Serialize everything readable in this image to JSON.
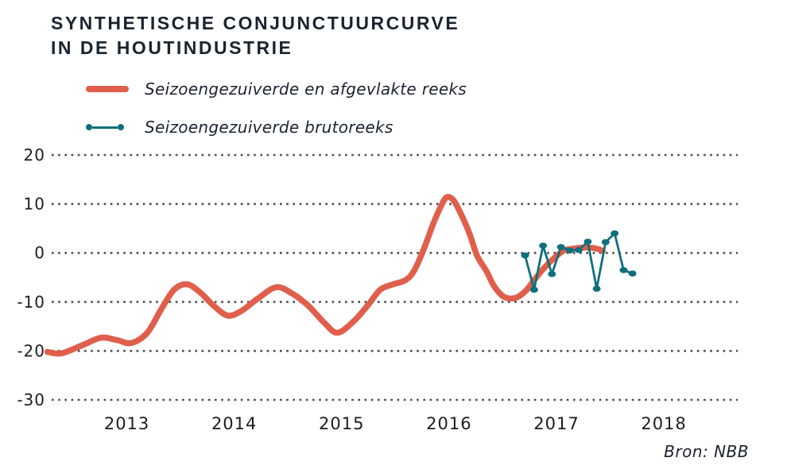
{
  "header": {
    "title_line1": "SYNTHETISCHE CONJUNCTUURCURVE",
    "title_line2": "IN DE HOUTINDUSTRIE"
  },
  "legend": {
    "items": [
      {
        "id": "smoothed",
        "label": "Seizoengezuiverde en afgevlakte reeks"
      },
      {
        "id": "gross",
        "label": "Seizoengezuiverde brutoreeks"
      }
    ]
  },
  "footer": {
    "source": "Bron: NBB"
  },
  "colors": {
    "smoothed": "#df5f4b",
    "gross": "#0f6f7c",
    "grid": "#4b4b4b",
    "text": "#1d1d1b",
    "title": "#1a2330"
  },
  "chart_data": {
    "type": "line",
    "title": "Synthetische conjunctuurcurve in de houtindustrie",
    "xlabel": "",
    "ylabel": "",
    "y_ticks": [
      20,
      10,
      0,
      -10,
      -20,
      -30
    ],
    "ylim": [
      -30,
      20
    ],
    "x_ticks": [
      "2013",
      "2014",
      "2015",
      "2016",
      "2017",
      "2018"
    ],
    "xlim": [
      2012.3,
      2018.7
    ],
    "grid": "dotted-horizontal",
    "legend_position": "top-left",
    "series": [
      {
        "name": "Seizoengezuiverde en afgevlakte reeks",
        "style": "thick-smooth-line",
        "color_key": "smoothed",
        "points": [
          [
            2012.26,
            -20.2
          ],
          [
            2012.39,
            -20.5
          ],
          [
            2012.59,
            -18.8
          ],
          [
            2012.76,
            -17.3
          ],
          [
            2012.91,
            -17.8
          ],
          [
            2013.04,
            -18.4
          ],
          [
            2013.19,
            -16.3
          ],
          [
            2013.32,
            -11.5
          ],
          [
            2013.44,
            -7.5
          ],
          [
            2013.56,
            -6.4
          ],
          [
            2013.68,
            -8.0
          ],
          [
            2013.81,
            -10.8
          ],
          [
            2013.94,
            -12.8
          ],
          [
            2014.07,
            -11.8
          ],
          [
            2014.22,
            -9.3
          ],
          [
            2014.39,
            -7.0
          ],
          [
            2014.54,
            -8.3
          ],
          [
            2014.69,
            -10.8
          ],
          [
            2014.84,
            -14.3
          ],
          [
            2014.96,
            -16.3
          ],
          [
            2015.11,
            -14.0
          ],
          [
            2015.24,
            -10.8
          ],
          [
            2015.36,
            -7.5
          ],
          [
            2015.48,
            -6.4
          ],
          [
            2015.59,
            -5.6
          ],
          [
            2015.67,
            -3.8
          ],
          [
            2015.76,
            0.5
          ],
          [
            2015.85,
            5.8
          ],
          [
            2015.93,
            9.8
          ],
          [
            2015.98,
            11.4
          ],
          [
            2016.04,
            10.8
          ],
          [
            2016.11,
            8.0
          ],
          [
            2016.19,
            4.0
          ],
          [
            2016.26,
            -0.5
          ],
          [
            2016.35,
            -3.8
          ],
          [
            2016.42,
            -6.8
          ],
          [
            2016.5,
            -8.8
          ],
          [
            2016.57,
            -9.3
          ],
          [
            2016.64,
            -9.0
          ],
          [
            2016.72,
            -7.6
          ],
          [
            2016.79,
            -5.6
          ],
          [
            2016.88,
            -3.2
          ],
          [
            2016.98,
            -1.0
          ],
          [
            2017.07,
            0.5
          ],
          [
            2017.16,
            0.9
          ],
          [
            2017.27,
            1.1
          ],
          [
            2017.37,
            0.9
          ],
          [
            2017.43,
            0.4
          ]
        ]
      },
      {
        "name": "Seizoengezuiverde brutoreeks",
        "style": "thin-line-dot-markers",
        "color_key": "gross",
        "points": [
          [
            2016.708,
            -0.5
          ],
          [
            2016.792,
            -7.5
          ],
          [
            2016.875,
            1.5
          ],
          [
            2016.958,
            -4.3
          ],
          [
            2017.042,
            1.2
          ],
          [
            2017.125,
            0.5
          ],
          [
            2017.208,
            0.6
          ],
          [
            2017.292,
            2.3
          ],
          [
            2017.375,
            -7.3
          ],
          [
            2017.458,
            2.2
          ],
          [
            2017.542,
            4.0
          ],
          [
            2017.625,
            -3.5
          ],
          [
            2017.708,
            -4.2
          ]
        ]
      }
    ]
  }
}
